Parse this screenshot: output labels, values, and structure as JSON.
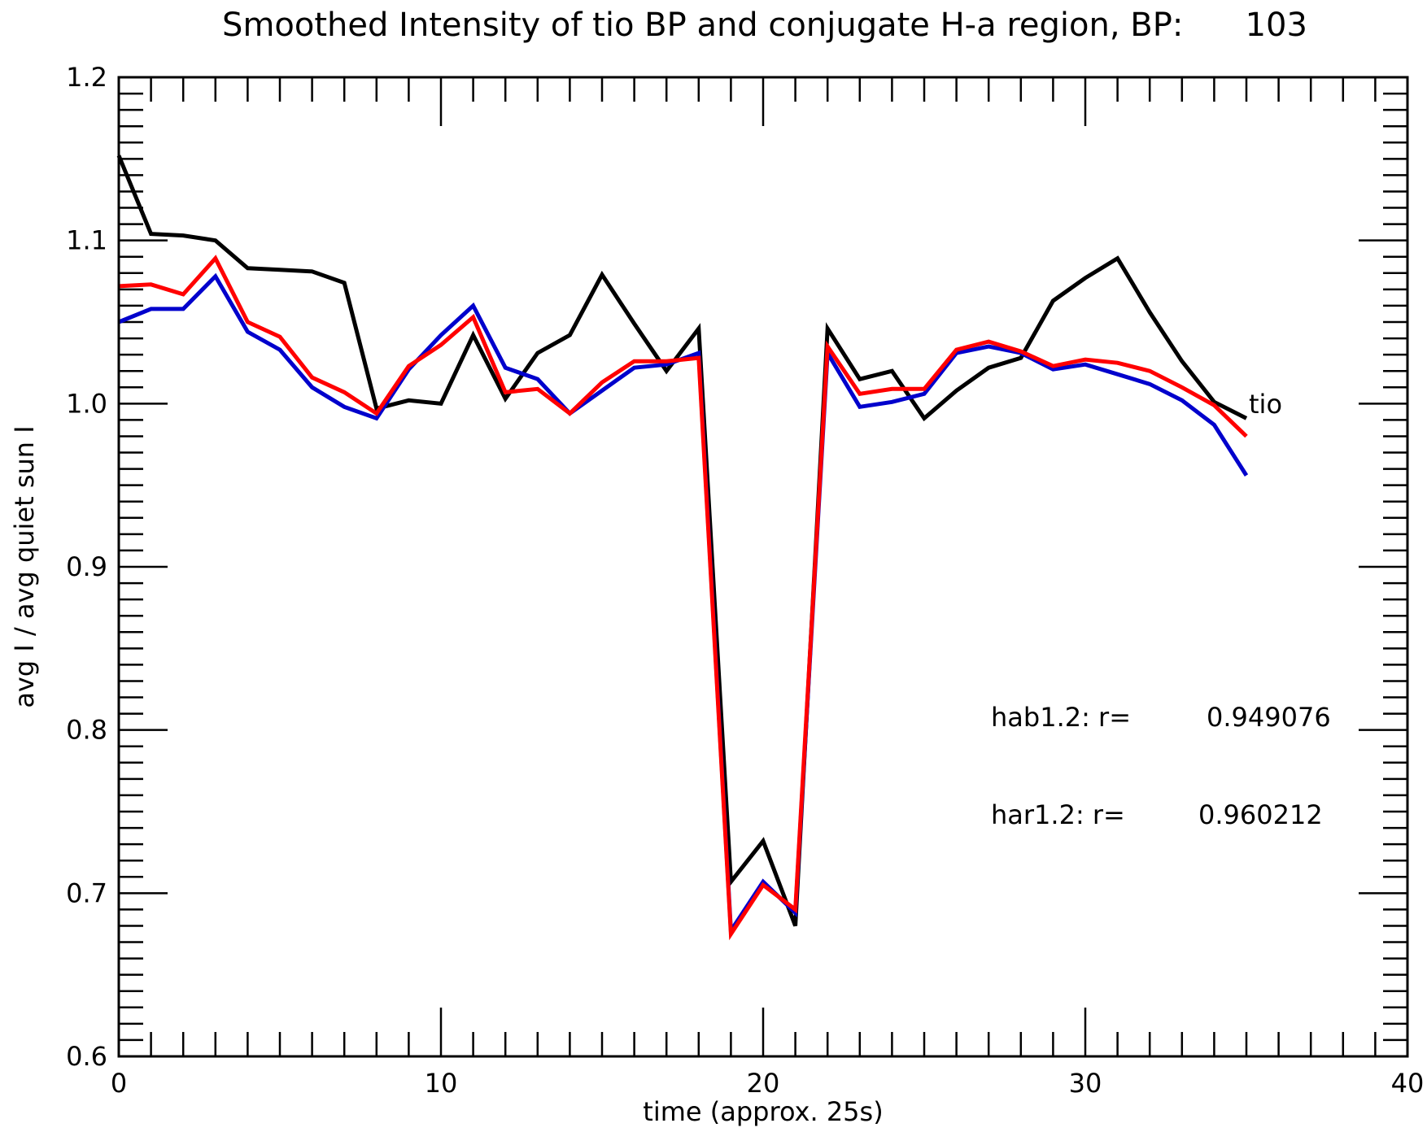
{
  "chart_data": {
    "type": "line",
    "title": "Smoothed Intensity of tio BP and conjugate H-a region, BP:      103",
    "xlabel": "time (approx. 25s)",
    "ylabel": "avg I / avg quiet sun I",
    "xlim": [
      0,
      40
    ],
    "ylim": [
      0.6,
      1.2
    ],
    "x_ticks": [
      0,
      10,
      20,
      30,
      40
    ],
    "y_ticks": [
      0.6,
      0.7,
      0.8,
      0.9,
      1.0,
      1.1,
      1.2
    ],
    "x_tick_labels": [
      "0",
      "10",
      "20",
      "30",
      "40"
    ],
    "y_tick_labels": [
      "0.6",
      "0.7",
      "0.8",
      "0.9",
      "1.0",
      "1.1",
      "1.2"
    ],
    "x_minor_step": 1,
    "y_minor_step": 0.01,
    "grid": false,
    "x": [
      0,
      1,
      2,
      3,
      4,
      5,
      6,
      7,
      8,
      9,
      10,
      11,
      12,
      13,
      14,
      15,
      16,
      17,
      18,
      19,
      20,
      21,
      22,
      23,
      24,
      25,
      26,
      27,
      28,
      29,
      30,
      31,
      32,
      33,
      34,
      35
    ],
    "series": [
      {
        "name": "tio",
        "color": "#000000",
        "label_at_end": true,
        "values": [
          1.152,
          1.104,
          1.103,
          1.1,
          1.083,
          1.082,
          1.081,
          1.074,
          0.997,
          1.002,
          1.0,
          1.042,
          1.003,
          1.031,
          1.042,
          1.079,
          1.049,
          1.02,
          1.046,
          0.707,
          0.732,
          0.68,
          1.046,
          1.015,
          1.02,
          0.991,
          1.008,
          1.022,
          1.028,
          1.063,
          1.077,
          1.089,
          1.056,
          1.026,
          1.001,
          0.991
        ]
      },
      {
        "color": "#0000cc",
        "values": [
          1.05,
          1.058,
          1.058,
          1.078,
          1.044,
          1.033,
          1.01,
          0.998,
          0.991,
          1.021,
          1.042,
          1.06,
          1.022,
          1.015,
          0.994,
          1.008,
          1.022,
          1.024,
          1.031,
          0.677,
          0.707,
          0.688,
          1.031,
          0.998,
          1.001,
          1.006,
          1.031,
          1.035,
          1.031,
          1.021,
          1.024,
          1.018,
          1.012,
          1.002,
          0.987,
          0.956
        ]
      },
      {
        "color": "#ff0000",
        "values": [
          1.072,
          1.073,
          1.067,
          1.089,
          1.05,
          1.041,
          1.016,
          1.007,
          0.994,
          1.023,
          1.036,
          1.053,
          1.007,
          1.009,
          0.994,
          1.013,
          1.026,
          1.026,
          1.028,
          0.675,
          0.705,
          0.69,
          1.035,
          1.006,
          1.009,
          1.009,
          1.033,
          1.038,
          1.032,
          1.023,
          1.027,
          1.025,
          1.02,
          1.01,
          0.999,
          0.98
        ]
      }
    ],
    "annotations": [
      {
        "label": "hab1.2: r=",
        "value": "0.949076"
      },
      {
        "label": "har1.2: r=",
        "value": "0.960212"
      }
    ]
  }
}
